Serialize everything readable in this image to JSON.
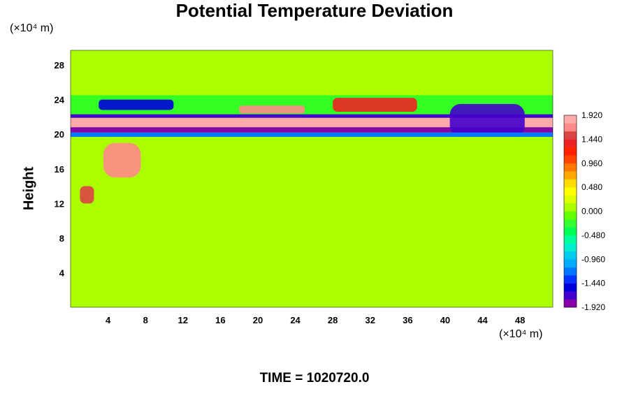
{
  "chart_data": {
    "type": "heatmap",
    "title": "Potential Temperature Deviation",
    "ylabel": "Height",
    "y_unit": "(×10⁴ m)",
    "x_unit": "(×10⁴ m)",
    "footer": "TIME = 1020720.0",
    "xlim": [
      0,
      51.5
    ],
    "ylim": [
      0,
      29.7
    ],
    "x_ticks": [
      "4",
      "8",
      "12",
      "16",
      "20",
      "24",
      "28",
      "32",
      "36",
      "40",
      "44",
      "48"
    ],
    "y_ticks": [
      "4",
      "8",
      "12",
      "16",
      "20",
      "24",
      "28"
    ],
    "colorbar": {
      "min": -1.92,
      "max": 1.92,
      "labels": [
        "1.920",
        "1.440",
        "0.960",
        "0.480",
        "0.000",
        "-0.480",
        "-0.960",
        "-1.440",
        "-1.920"
      ],
      "colors": [
        "#8800aa",
        "#4400cc",
        "#0000dd",
        "#0033ff",
        "#0077ff",
        "#00aaff",
        "#00ccee",
        "#00eecc",
        "#00ff99",
        "#00ff55",
        "#33ff33",
        "#66ff00",
        "#aaff00",
        "#ddff00",
        "#ffff00",
        "#ffdd00",
        "#ffaa00",
        "#ff7700",
        "#ff4400",
        "#ff2200",
        "#ee2222",
        "#dd4444",
        "#ff8888",
        "#ffaaaa"
      ]
    },
    "features": [
      {
        "x0": 0,
        "x1": 51.5,
        "y0": 21.9,
        "y1": 20.8,
        "value": 1.92
      },
      {
        "x0": 0,
        "x1": 51.5,
        "y0": 20.8,
        "y1": 20.2,
        "value": -1.92
      },
      {
        "x0": 0,
        "x1": 51.5,
        "y0": 22.3,
        "y1": 21.9,
        "value": -1.7
      },
      {
        "x0": 0,
        "x1": 51.5,
        "y0": 20.2,
        "y1": 19.7,
        "value": -1.2
      },
      {
        "x0": 3.5,
        "x1": 7.5,
        "y0": 19.0,
        "y1": 15.0,
        "value": 1.7
      },
      {
        "x0": 1.0,
        "x1": 2.5,
        "y0": 14.0,
        "y1": 12.0,
        "value": 1.5
      },
      {
        "x0": 3.0,
        "x1": 11.0,
        "y0": 24.0,
        "y1": 22.8,
        "value": -1.5
      },
      {
        "x0": 18.0,
        "x1": 25.0,
        "y0": 23.3,
        "y1": 22.4,
        "value": 1.6
      },
      {
        "x0": 28.0,
        "x1": 37.0,
        "y0": 24.2,
        "y1": 22.6,
        "value": 1.3
      },
      {
        "x0": 40.5,
        "x1": 48.5,
        "y0": 23.5,
        "y1": 19.7,
        "value": -1.6
      },
      {
        "x0": 0,
        "x1": 51.5,
        "y0": 29.7,
        "y1": 24.5,
        "value": 0.1
      },
      {
        "x0": 0,
        "x1": 51.5,
        "y0": 19.7,
        "y1": 0,
        "value": 0.0
      }
    ]
  }
}
